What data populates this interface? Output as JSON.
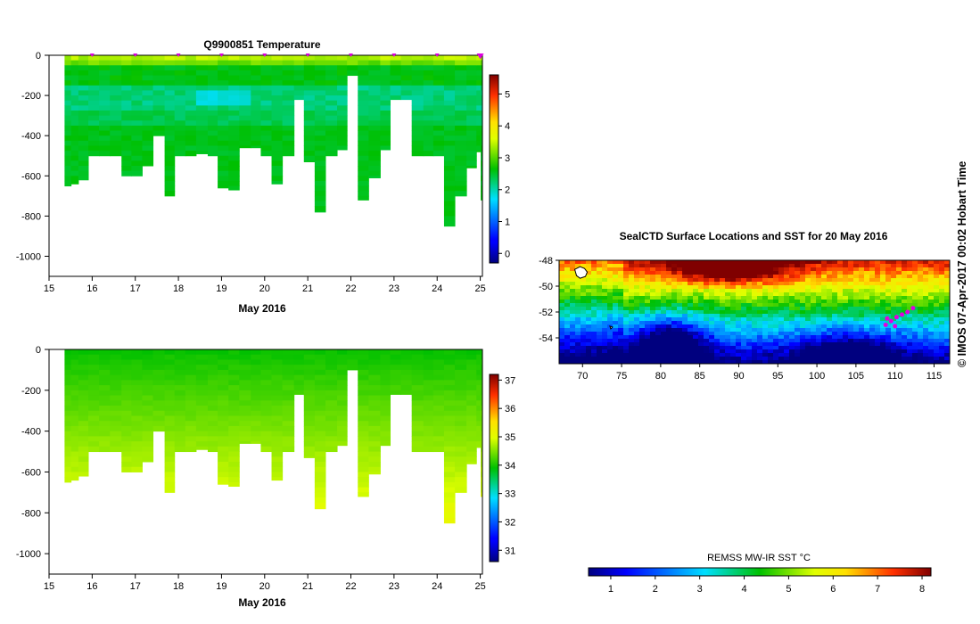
{
  "credit": "© IMOS 07-Apr-2017 00:02 Hobart Time",
  "colors": {
    "map_land": "#ffffff",
    "marker": "#e000e0",
    "bg": "#ffffff"
  },
  "chart_data": [
    {
      "id": "temperature-profile",
      "type": "heatmap",
      "title": "Q9900851  Temperature",
      "xlabel": "May 2016",
      "ylabel": "",
      "xlim": [
        15,
        25.05
      ],
      "ylim": [
        -1100,
        0
      ],
      "x_ticks": [
        15,
        16,
        17,
        18,
        19,
        20,
        21,
        22,
        23,
        24,
        25
      ],
      "y_ticks": [
        0,
        -200,
        -400,
        -600,
        -800,
        -1000
      ],
      "colorbar": {
        "min": -0.3,
        "max": 5.6,
        "ticks": [
          0,
          1,
          2,
          3,
          4,
          5
        ]
      },
      "profile_times": [
        15.4,
        15.55,
        15.72,
        15.95,
        16.2,
        16.45,
        16.72,
        16.95,
        17.2,
        17.45,
        17.72,
        17.95,
        18.2,
        18.45,
        18.72,
        18.95,
        19.2,
        19.45,
        19.72,
        19.95,
        20.2,
        20.45,
        20.72,
        20.95,
        21.2,
        21.45,
        21.72,
        21.95,
        22.2,
        22.45,
        22.72,
        22.95,
        23.2,
        23.45,
        23.72,
        23.95,
        24.2,
        24.45,
        24.72,
        24.95,
        25.05
      ],
      "profile_depths": [
        -650,
        -640,
        -620,
        -500,
        -500,
        -500,
        -600,
        -600,
        -550,
        -400,
        -700,
        -500,
        -500,
        -490,
        -500,
        -660,
        -670,
        -460,
        -460,
        -500,
        -640,
        -500,
        -220,
        -530,
        -780,
        -500,
        -470,
        -100,
        -720,
        -610,
        -470,
        -220,
        -220,
        -500,
        -500,
        -500,
        -850,
        -700,
        -560,
        -480,
        -720
      ],
      "surface_markers": [
        16,
        17,
        18,
        19,
        20,
        21,
        22,
        23,
        24,
        25
      ]
    },
    {
      "id": "salinity-profile",
      "type": "heatmap",
      "title": "",
      "xlabel": "May 2016",
      "ylabel": "",
      "xlim": [
        15,
        25.05
      ],
      "ylim": [
        -1100,
        0
      ],
      "x_ticks": [
        15,
        16,
        17,
        18,
        19,
        20,
        21,
        22,
        23,
        24,
        25
      ],
      "y_ticks": [
        0,
        -200,
        -400,
        -600,
        -800,
        -1000
      ],
      "colorbar": {
        "min": 30.6,
        "max": 37.2,
        "ticks": [
          31,
          32,
          33,
          34,
          35,
          36,
          37
        ]
      }
    },
    {
      "id": "sst-map",
      "type": "heatmap",
      "title": "SealCTD Surface Locations and SST for 20 May 2016",
      "xlabel": "",
      "ylabel": "",
      "xlim": [
        67,
        117
      ],
      "ylim": [
        -56,
        -48
      ],
      "x_ticks": [
        70,
        75,
        80,
        85,
        90,
        95,
        100,
        105,
        110,
        115
      ],
      "y_ticks": [
        -48,
        -50,
        -52,
        -54
      ],
      "track": [
        [
          108.8,
          -53.0
        ],
        [
          109.5,
          -52.7
        ],
        [
          110.2,
          -52.4
        ],
        [
          110.9,
          -52.2
        ],
        [
          111.6,
          -52.0
        ],
        [
          112.3,
          -51.7
        ],
        [
          110.0,
          -53.1
        ],
        [
          109.0,
          -52.5
        ]
      ],
      "colorbar": {
        "label": "REMSS MW-IR SST °C",
        "min": 0.5,
        "max": 8.2,
        "ticks": [
          1,
          2,
          3,
          4,
          5,
          6,
          7,
          8
        ]
      }
    }
  ]
}
